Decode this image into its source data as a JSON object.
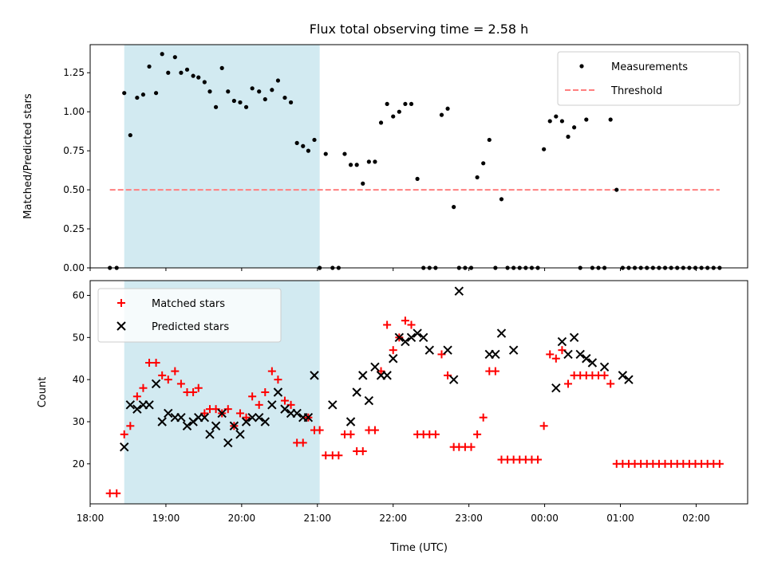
{
  "chart_data": [
    {
      "type": "scatter",
      "title": "Flux total observing time = 2.58 h",
      "ylabel": "Matched/Predicted stars",
      "xlabel": "",
      "ylim": [
        0,
        1.43
      ],
      "yticks": [
        "0.00",
        "0.25",
        "0.50",
        "0.75",
        "1.00",
        "1.25"
      ],
      "grid": false,
      "legend_position": "top-right",
      "shaded_span_hours": [
        18.45,
        21.03
      ],
      "shaded_color": "#add8e6",
      "series": [
        {
          "name": "Measurements",
          "marker": "dot",
          "color": "#000000",
          "x": [
            18.26,
            18.35,
            18.45,
            18.53,
            18.62,
            18.7,
            18.78,
            18.87,
            18.95,
            19.03,
            19.12,
            19.2,
            19.28,
            19.36,
            19.43,
            19.51,
            19.58,
            19.66,
            19.74,
            19.82,
            19.9,
            19.98,
            20.06,
            20.14,
            20.23,
            20.31,
            20.4,
            20.48,
            20.57,
            20.65,
            20.73,
            20.81,
            20.88,
            20.96,
            21.03,
            21.11,
            21.2,
            21.28,
            21.36,
            21.44,
            21.52,
            21.6,
            21.68,
            21.76,
            21.84,
            21.92,
            22.0,
            22.08,
            22.16,
            22.24,
            22.32,
            22.4,
            22.48,
            22.56,
            22.64,
            22.72,
            22.8,
            22.87,
            22.95,
            23.03,
            23.11,
            23.19,
            23.27,
            23.35,
            23.43,
            23.51,
            23.59,
            23.67,
            23.75,
            23.83,
            23.91,
            23.99,
            24.07,
            24.15,
            24.23,
            24.31,
            24.39,
            24.47,
            24.55,
            24.63,
            24.71,
            24.79,
            24.87,
            24.95,
            25.03,
            25.11,
            25.19,
            25.27,
            25.35,
            25.43,
            25.51,
            25.59,
            25.67,
            25.75,
            25.83,
            25.91,
            25.99,
            26.07,
            26.15,
            26.23,
            26.31
          ],
          "y": [
            0.0,
            0.0,
            1.12,
            0.85,
            1.09,
            1.11,
            1.29,
            1.12,
            1.37,
            1.25,
            1.35,
            1.25,
            1.27,
            1.23,
            1.22,
            1.19,
            1.13,
            1.03,
            1.28,
            1.13,
            1.07,
            1.06,
            1.03,
            1.15,
            1.13,
            1.08,
            1.14,
            1.2,
            1.09,
            1.06,
            0.8,
            0.78,
            0.75,
            0.82,
            0.0,
            0.73,
            0.0,
            0.0,
            0.73,
            0.66,
            0.66,
            0.54,
            0.68,
            0.68,
            0.93,
            1.05,
            0.97,
            1.0,
            1.05,
            1.05,
            0.57,
            0.0,
            0.0,
            0.0,
            0.98,
            1.02,
            0.39,
            0.0,
            0.0,
            0.0,
            0.58,
            0.67,
            0.82,
            0.0,
            0.44,
            0.0,
            0.0,
            0.0,
            0.0,
            0.0,
            0.0,
            0.76,
            0.94,
            0.97,
            0.94,
            0.84,
            0.9,
            0.0,
            0.95,
            0.0,
            0.0,
            0.0,
            0.95,
            0.5,
            0.0,
            0.0,
            0.0,
            0.0,
            0.0,
            0.0,
            0.0,
            0.0,
            0.0,
            0.0,
            0.0,
            0.0,
            0.0,
            0.0,
            0.0,
            0.0,
            0.0
          ]
        },
        {
          "name": "Threshold",
          "marker": "dashed-line",
          "color": "#ff7f7f",
          "x": [
            18.26,
            26.31
          ],
          "y": [
            0.5,
            0.5
          ]
        }
      ]
    },
    {
      "type": "scatter",
      "title": "",
      "ylabel": "Count",
      "xlabel": "Time (UTC)",
      "xlim": [
        18.0,
        26.68
      ],
      "xticks": [
        "18:00",
        "19:00",
        "20:00",
        "21:00",
        "22:00",
        "23:00",
        "00:00",
        "01:00",
        "02:00"
      ],
      "ylim": [
        10.5,
        63.5
      ],
      "yticks": [
        "20",
        "30",
        "40",
        "50",
        "60"
      ],
      "grid": false,
      "legend_position": "top-left",
      "shaded_span_hours": [
        18.45,
        21.03
      ],
      "shaded_color": "#add8e6",
      "series": [
        {
          "name": "Matched stars",
          "marker": "plus",
          "color": "#ff0000",
          "x": [
            18.26,
            18.35,
            18.45,
            18.53,
            18.62,
            18.7,
            18.78,
            18.87,
            18.95,
            19.03,
            19.12,
            19.2,
            19.28,
            19.36,
            19.43,
            19.51,
            19.58,
            19.66,
            19.74,
            19.82,
            19.9,
            19.98,
            20.06,
            20.14,
            20.23,
            20.31,
            20.4,
            20.48,
            20.57,
            20.65,
            20.73,
            20.81,
            20.88,
            20.96,
            21.03,
            21.11,
            21.2,
            21.28,
            21.36,
            21.44,
            21.52,
            21.6,
            21.68,
            21.76,
            21.84,
            21.92,
            22.0,
            22.08,
            22.16,
            22.24,
            22.32,
            22.4,
            22.48,
            22.56,
            22.64,
            22.72,
            22.8,
            22.87,
            22.95,
            23.03,
            23.11,
            23.19,
            23.27,
            23.35,
            23.43,
            23.51,
            23.59,
            23.67,
            23.75,
            23.83,
            23.91,
            23.99,
            24.07,
            24.15,
            24.23,
            24.31,
            24.39,
            24.47,
            24.55,
            24.63,
            24.71,
            24.79,
            24.87,
            24.95,
            25.03,
            25.11,
            25.19,
            25.27,
            25.35,
            25.43,
            25.51,
            25.59,
            25.67,
            25.75,
            25.83,
            25.91,
            25.99,
            26.07,
            26.15,
            26.23,
            26.31
          ],
          "y": [
            13,
            13,
            27,
            29,
            36,
            38,
            44,
            44,
            41,
            40,
            42,
            39,
            37,
            37,
            38,
            32,
            33,
            33,
            32,
            33,
            29,
            32,
            31,
            36,
            34,
            37,
            42,
            40,
            35,
            34,
            25,
            25,
            31,
            28,
            28,
            22,
            22,
            22,
            27,
            27,
            23,
            23,
            28,
            28,
            42,
            53,
            47,
            50,
            54,
            53,
            27,
            27,
            27,
            27,
            46,
            41,
            24,
            24,
            24,
            24,
            27,
            31,
            42,
            42,
            21,
            21,
            21,
            21,
            21,
            21,
            21,
            29,
            46,
            45,
            47,
            39,
            41,
            41,
            41,
            41,
            41,
            41,
            39,
            20,
            20,
            20,
            20,
            20,
            20,
            20,
            20,
            20,
            20,
            20,
            20,
            20,
            20,
            20,
            20,
            20,
            20
          ]
        },
        {
          "name": "Predicted stars",
          "marker": "x",
          "color": "#000000",
          "x": [
            18.45,
            18.53,
            18.62,
            18.7,
            18.78,
            18.87,
            18.95,
            19.03,
            19.12,
            19.2,
            19.28,
            19.36,
            19.43,
            19.51,
            19.58,
            19.66,
            19.74,
            19.82,
            19.9,
            19.98,
            20.06,
            20.14,
            20.23,
            20.31,
            20.4,
            20.48,
            20.57,
            20.65,
            20.73,
            20.81,
            20.88,
            20.96,
            21.2,
            21.44,
            21.52,
            21.6,
            21.68,
            21.76,
            21.84,
            21.92,
            22.0,
            22.08,
            22.16,
            22.24,
            22.32,
            22.4,
            22.48,
            22.72,
            22.8,
            22.87,
            23.27,
            23.35,
            23.43,
            23.59,
            24.15,
            24.23,
            24.31,
            24.39,
            24.47,
            24.55,
            24.63,
            24.79,
            25.03,
            25.11
          ],
          "y": [
            24,
            34,
            33,
            34,
            34,
            39,
            30,
            32,
            31,
            31,
            29,
            30,
            31,
            31,
            27,
            29,
            32,
            25,
            29,
            27,
            30,
            31,
            31,
            30,
            34,
            37,
            33,
            32,
            32,
            31,
            31,
            41,
            34,
            30,
            37,
            41,
            35,
            43,
            41,
            41,
            45,
            50,
            49,
            50,
            51,
            50,
            47,
            47,
            40,
            61,
            46,
            46,
            51,
            47,
            38,
            49,
            46,
            50,
            46,
            45,
            44,
            43,
            41,
            40
          ]
        }
      ]
    }
  ]
}
